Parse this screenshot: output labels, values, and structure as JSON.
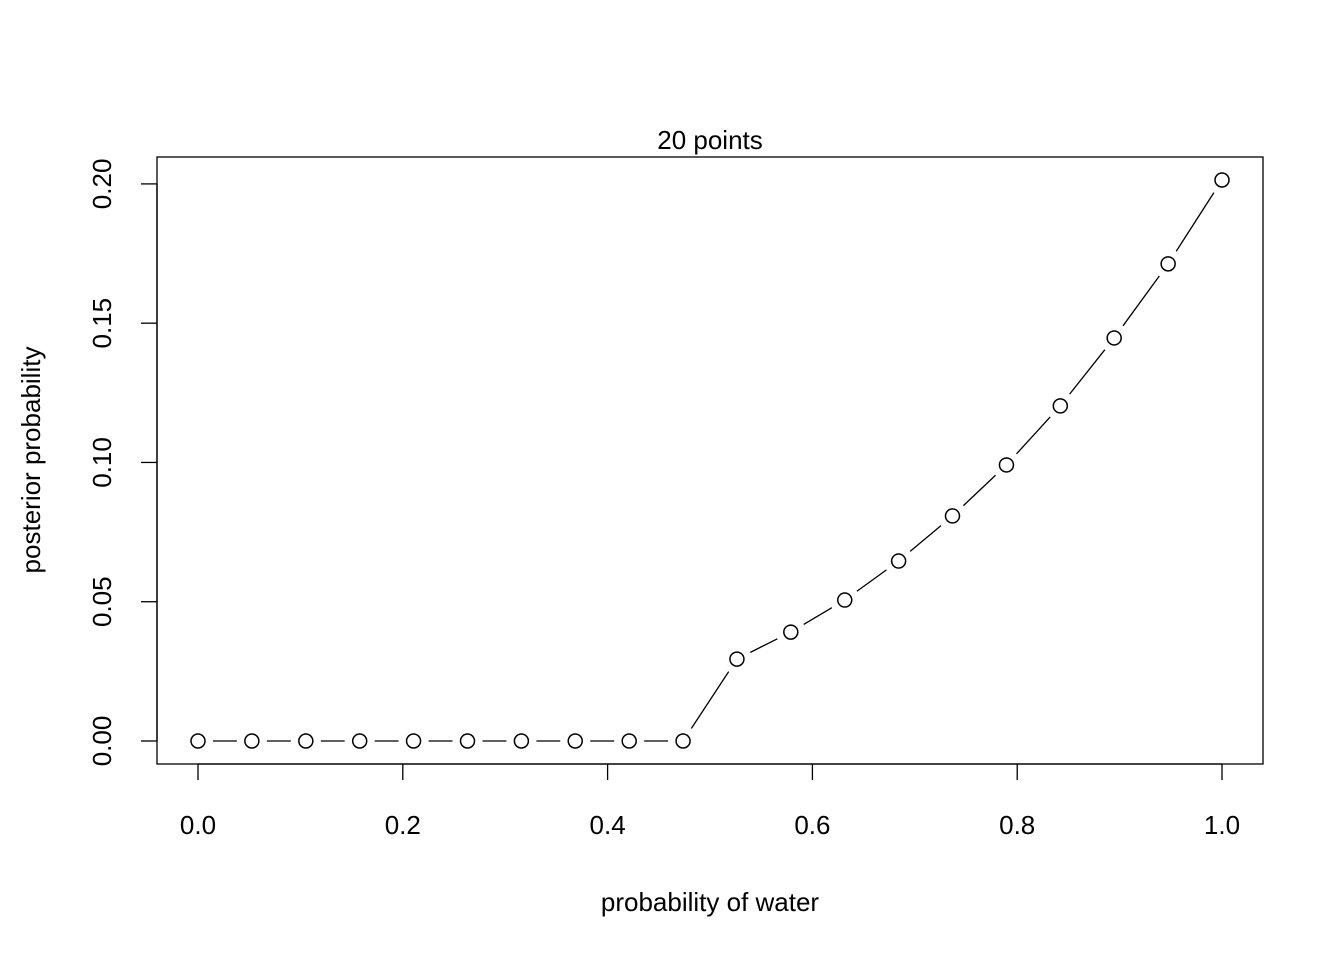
{
  "chart_data": {
    "type": "line",
    "title": "20 points",
    "xlabel": "probability of water",
    "ylabel": "posterior probability",
    "xlim": [
      0,
      1
    ],
    "ylim": [
      0,
      0.2014
    ],
    "x_ticks": [
      "0.0",
      "0.2",
      "0.4",
      "0.6",
      "0.8",
      "1.0"
    ],
    "y_ticks": [
      "0.00",
      "0.05",
      "0.10",
      "0.15",
      "0.20"
    ],
    "grid": false,
    "markers": "open-circle",
    "line_color": "#000000",
    "x": [
      0,
      0.0526,
      0.1053,
      0.1579,
      0.2105,
      0.2632,
      0.3158,
      0.3684,
      0.4211,
      0.4737,
      0.5263,
      0.5789,
      0.6316,
      0.6842,
      0.7368,
      0.7895,
      0.8421,
      0.8947,
      0.9474,
      1.0
    ],
    "y": [
      0,
      0,
      0,
      0,
      0,
      0,
      0,
      0,
      0,
      0,
      0.0294,
      0.0391,
      0.0506,
      0.0646,
      0.0808,
      0.0991,
      0.1203,
      0.1447,
      0.1713,
      0.2014
    ]
  }
}
